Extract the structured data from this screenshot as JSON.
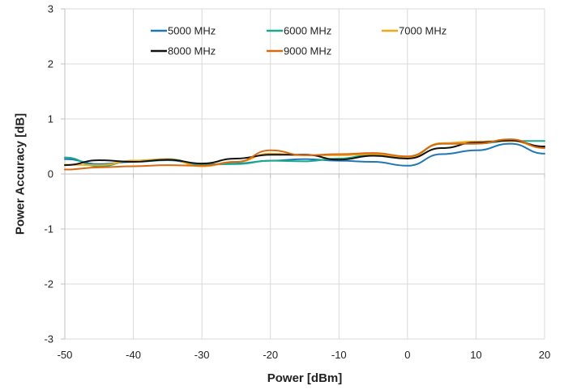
{
  "chart_data": {
    "type": "line",
    "title": "",
    "xlabel": "Power [dBm]",
    "ylabel": "Power Accuracy [dB]",
    "xlim": [
      -50,
      20
    ],
    "ylim": [
      -3,
      3
    ],
    "xticks": [
      -50,
      -40,
      -30,
      -20,
      -10,
      0,
      10,
      20
    ],
    "yticks": [
      -3,
      -2,
      -1,
      0,
      1,
      2,
      3
    ],
    "xtick_labels": [
      "-50",
      "-40",
      "-30",
      "-20",
      "-10",
      "0",
      "10",
      "20"
    ],
    "ytick_labels": [
      "-3",
      "-2",
      "-1",
      "0",
      "1",
      "2",
      "3"
    ],
    "grid": true,
    "legend_position": "top",
    "x": [
      -50,
      -45,
      -40,
      -35,
      -30,
      -25,
      -20,
      -15,
      -10,
      -5,
      0,
      5,
      10,
      15,
      20
    ],
    "series": [
      {
        "name": "5000 MHz",
        "color": "#1f77b4",
        "values": [
          0.27,
          0.18,
          0.22,
          0.25,
          0.17,
          0.19,
          0.24,
          0.27,
          0.24,
          0.22,
          0.15,
          0.36,
          0.43,
          0.55,
          0.37
        ]
      },
      {
        "name": "6000 MHz",
        "color": "#1aa88f",
        "values": [
          0.3,
          0.14,
          0.24,
          0.27,
          0.17,
          0.18,
          0.24,
          0.23,
          0.28,
          0.35,
          0.3,
          0.55,
          0.55,
          0.6,
          0.6
        ]
      },
      {
        "name": "7000 MHz",
        "color": "#f0a818",
        "values": [
          0.17,
          0.16,
          0.24,
          0.27,
          0.14,
          0.22,
          0.37,
          0.34,
          0.34,
          0.36,
          0.3,
          0.56,
          0.59,
          0.6,
          0.48
        ]
      },
      {
        "name": "8000 MHz",
        "color": "#111111",
        "values": [
          0.16,
          0.25,
          0.22,
          0.26,
          0.19,
          0.28,
          0.35,
          0.35,
          0.26,
          0.33,
          0.28,
          0.47,
          0.57,
          0.61,
          0.5
        ]
      },
      {
        "name": "9000 MHz",
        "color": "#d86a12",
        "values": [
          0.08,
          0.12,
          0.14,
          0.16,
          0.15,
          0.22,
          0.43,
          0.34,
          0.36,
          0.38,
          0.32,
          0.55,
          0.55,
          0.63,
          0.47
        ]
      }
    ]
  }
}
